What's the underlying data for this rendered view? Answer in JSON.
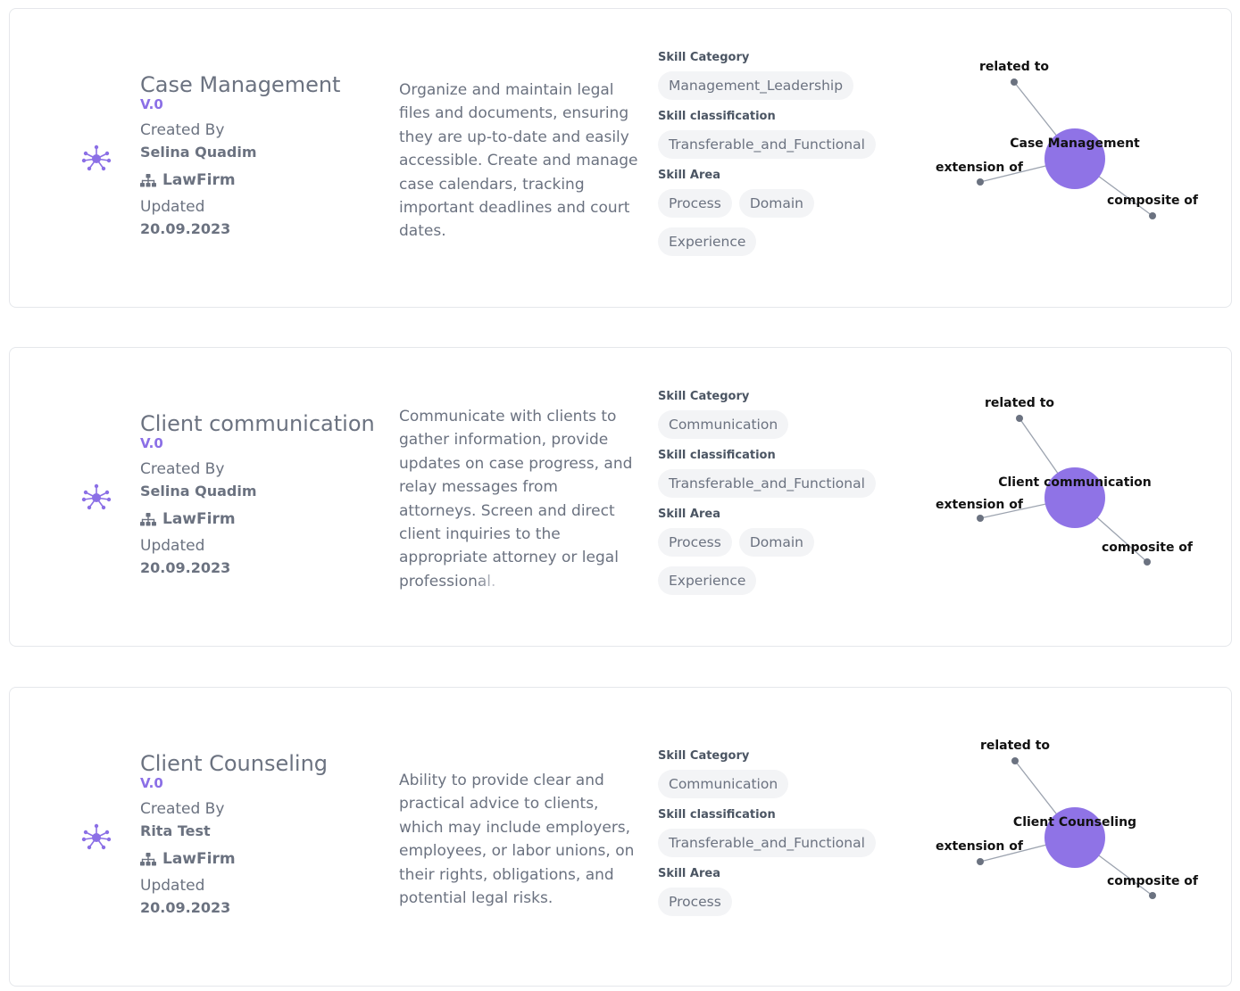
{
  "colors": {
    "accent": "#8b6fe6",
    "node": "#8f73e6",
    "text": "#6b7280"
  },
  "skills": [
    {
      "title": "Case Management",
      "version": "V.0",
      "created_by_label": "Created By",
      "creator": "Selina Quadim",
      "org": "LawFirm",
      "updated_label": "Updated",
      "updated": "20.09.2023",
      "description": "Organize and maintain legal files and documents, ensuring they are up-to-date and easily accessible. Create and manage case calendars, tracking important deadlines and court dates.",
      "description_fade": "",
      "category_label": "Skill Category",
      "category": "Management_Leadership",
      "classification_label": "Skill classification",
      "classification": "Transferable_and_Functional",
      "area_label": "Skill Area",
      "areas": [
        "Process",
        "Domain",
        "Experience"
      ],
      "graph": {
        "center": "Case Management",
        "related": "related to",
        "extension": "extension of",
        "composite": "composite of"
      }
    },
    {
      "title": "Client communication",
      "version": "V.0",
      "created_by_label": "Created By",
      "creator": "Selina Quadim",
      "org": "LawFirm",
      "updated_label": "Updated",
      "updated": "20.09.2023",
      "description": "Communicate with clients to gather information, provide updates on case progress, and relay messages from attorneys. Screen and direct client inquiries to the appropriate attorney or legal professi",
      "description_fade": "onal.",
      "category_label": "Skill Category",
      "category": "Communication",
      "classification_label": "Skill classification",
      "classification": "Transferable_and_Functional",
      "area_label": "Skill Area",
      "areas": [
        "Process",
        "Domain",
        "Experience"
      ],
      "graph": {
        "center": "Client communication",
        "related": "related to",
        "extension": "extension of",
        "composite": "composite of"
      }
    },
    {
      "title": "Client Counseling",
      "version": "V.0",
      "created_by_label": "Created By",
      "creator": "Rita Test",
      "org": "LawFirm",
      "updated_label": "Updated",
      "updated": "20.09.2023",
      "description": "Ability to provide clear and practical advice to clients, which may include employers, employees, or labor unions, on their rights, obligations, and potential legal risks.",
      "description_fade": "",
      "category_label": "Skill Category",
      "category": "Communication",
      "classification_label": "Skill classification",
      "classification": "Transferable_and_Functional",
      "area_label": "Skill Area",
      "areas": [
        "Process"
      ],
      "graph": {
        "center": "Client Counseling",
        "related": "related to",
        "extension": "extension of",
        "composite": "composite of"
      }
    }
  ]
}
